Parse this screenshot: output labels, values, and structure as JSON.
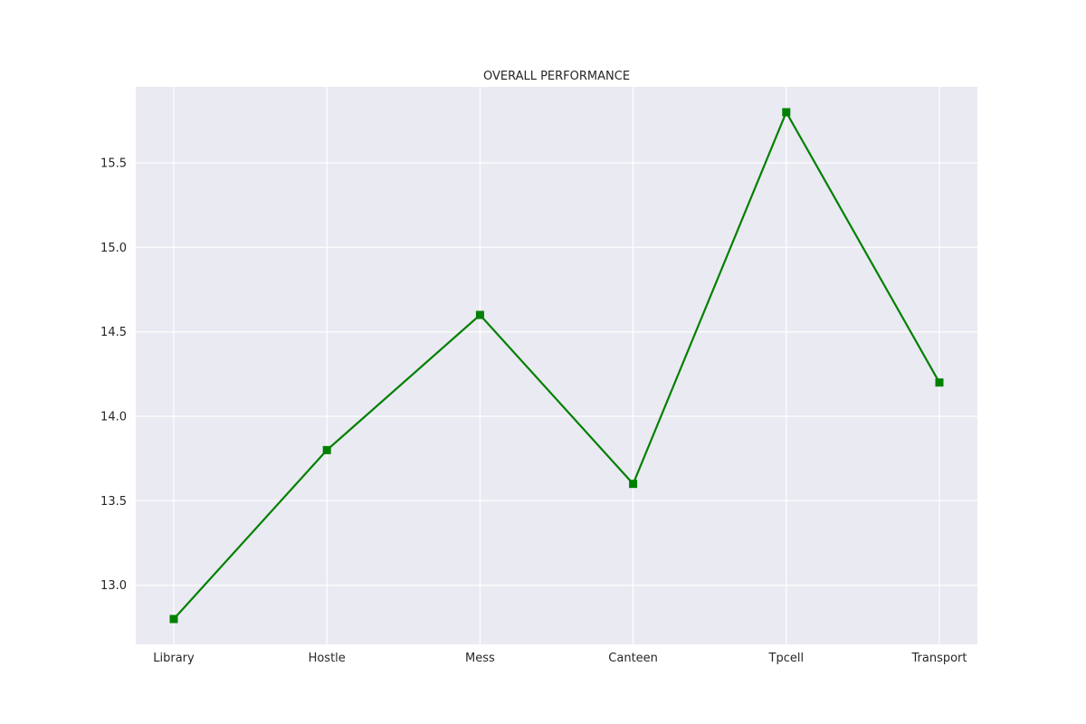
{
  "chart_data": {
    "type": "line",
    "title": "OVERALL PERFORMANCE",
    "xlabel": "",
    "ylabel": "",
    "categories": [
      "Library",
      "Hostle",
      "Mess",
      "Canteen",
      "Tpcell",
      "Transport"
    ],
    "series": [
      {
        "values": [
          12.8,
          13.8,
          14.6,
          13.6,
          15.8,
          14.2
        ],
        "color": "#008000",
        "marker": "square"
      }
    ],
    "ylim": [
      12.65,
      15.95
    ],
    "yticks": [
      "13.0",
      "13.5",
      "14.0",
      "14.5",
      "15.0",
      "15.5"
    ],
    "grid": true,
    "legend": "none",
    "background": "#eaeaf2",
    "grid_color": "#ffffff"
  }
}
